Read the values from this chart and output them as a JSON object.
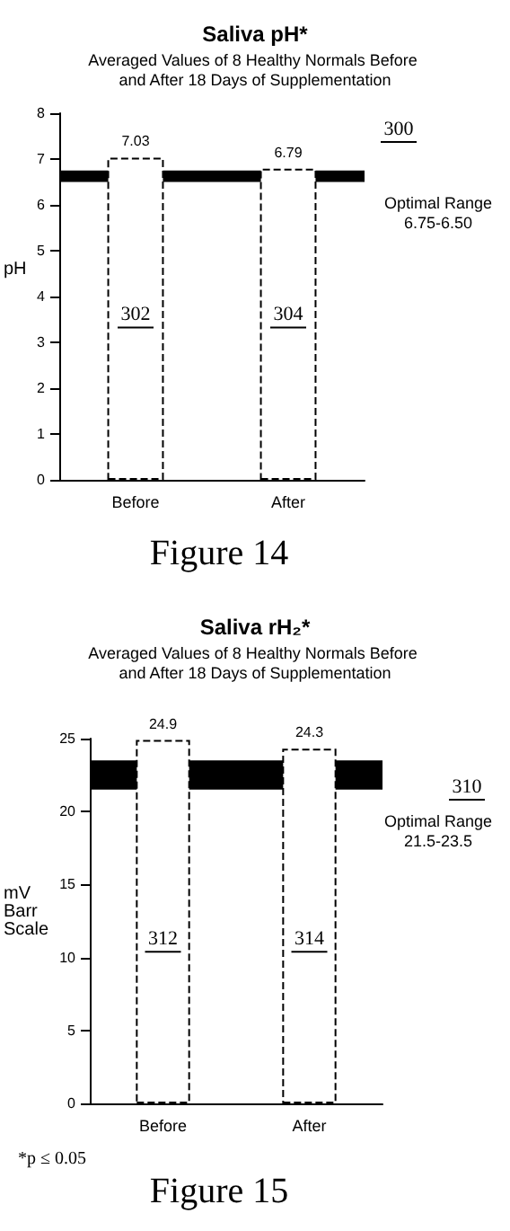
{
  "chart_data": [
    {
      "type": "bar",
      "title": "Saliva pH*",
      "subtitle": "Averaged Values of 8 Healthy Normals Before and After 18 Days of Supplementation",
      "ylabel": "pH",
      "categories": [
        "Before",
        "After"
      ],
      "values": [
        7.03,
        6.79
      ],
      "color": "#ffffff",
      "data_labels": true,
      "ylim": [
        0,
        8
      ],
      "yticks": [
        0,
        1,
        2,
        3,
        4,
        5,
        6,
        7,
        8
      ],
      "grid": false,
      "bands": [
        {
          "axis": "y",
          "from": 6.5,
          "to": 6.75,
          "label": "Optimal Range 6.75-6.50",
          "color": "#000000"
        }
      ],
      "annotations": [
        "302",
        "304",
        "300",
        "Figure 14"
      ]
    },
    {
      "type": "bar",
      "title": "Saliva rH₂*",
      "subtitle": "Averaged Values of 8 Healthy Normals Before and After 18 Days of Supplementation",
      "ylabel": "mV Barr Scale",
      "categories": [
        "Before",
        "After"
      ],
      "values": [
        24.9,
        24.3
      ],
      "color": "#ffffff",
      "data_labels": true,
      "ylim": [
        0,
        25
      ],
      "yticks": [
        0,
        5,
        10,
        15,
        20,
        25
      ],
      "grid": false,
      "bands": [
        {
          "axis": "y",
          "from": 21.5,
          "to": 23.5,
          "label": "Optimal Range 21.5-23.5",
          "color": "#000000"
        }
      ],
      "annotations": [
        "312",
        "314",
        "310",
        "*p ≤ 0.05",
        "Figure 15"
      ]
    }
  ]
}
